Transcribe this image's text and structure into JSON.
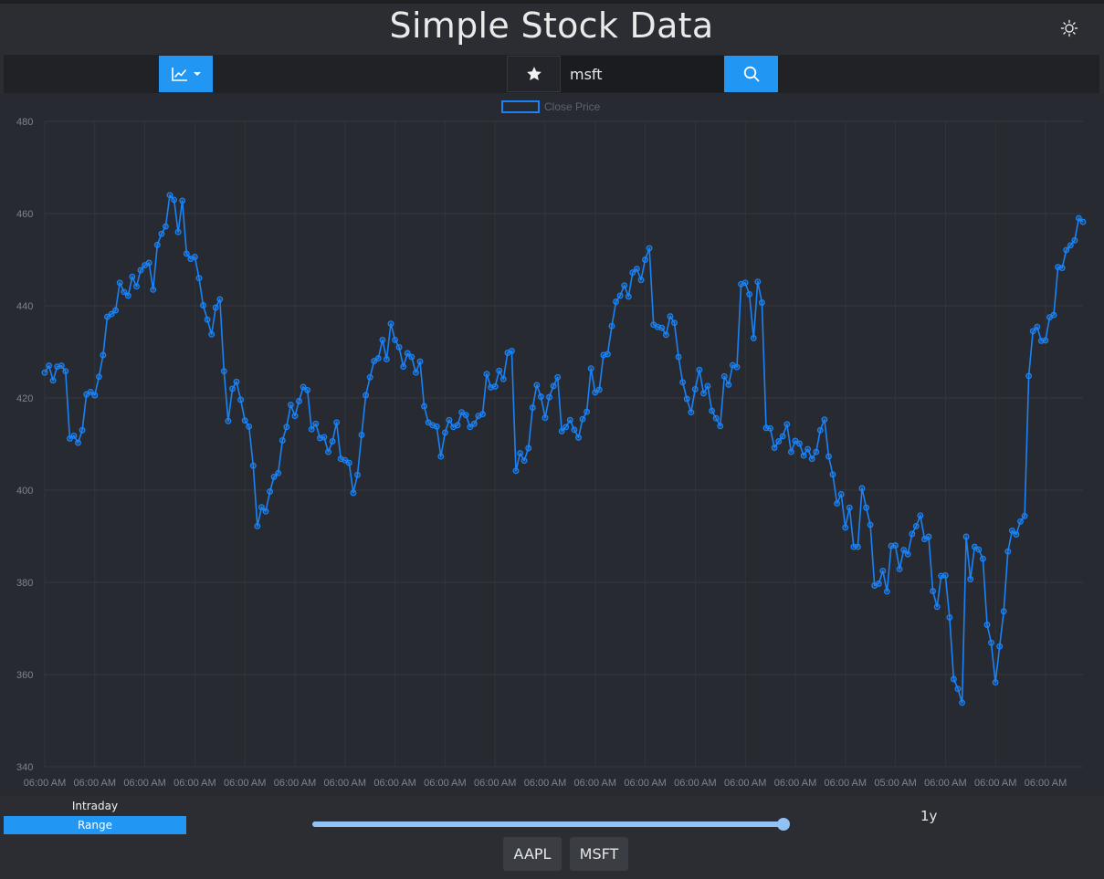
{
  "header": {
    "title": "Simple Stock Data",
    "theme_icon": "sun-icon"
  },
  "toolbar": {
    "chart_type_icon": "line-chart-icon",
    "favorite_icon": "star-icon",
    "search_value": "msft",
    "search_icon": "search-icon"
  },
  "colors": {
    "accent": "#2196f3",
    "line": "#1a82f7",
    "background": "#272a30"
  },
  "chart_data": {
    "type": "line",
    "legend": [
      "Close Price"
    ],
    "legend_position": "top-center",
    "ylim": [
      340,
      480
    ],
    "yticks": [
      340,
      360,
      380,
      400,
      420,
      440,
      460,
      480
    ],
    "xtick_labels": [
      "06:00 AM",
      "06:00 AM",
      "06:00 AM",
      "06:00 AM",
      "06:00 AM",
      "06:00 AM",
      "06:00 AM",
      "06:00 AM",
      "06:00 AM",
      "06:00 AM",
      "06:00 AM",
      "06:00 AM",
      "06:00 AM",
      "06:00 AM",
      "06:00 AM",
      "06:00 AM",
      "06:00 AM",
      "05:00 AM",
      "06:00 AM",
      "06:00 AM",
      "06:00 AM"
    ],
    "grid": true,
    "series": [
      {
        "name": "Close Price",
        "values": [
          425.5,
          427,
          423.8,
          426.8,
          427,
          425.8,
          411.2,
          411.8,
          410.3,
          413,
          420.8,
          421.3,
          420.6,
          424.6,
          429.3,
          437.6,
          438.2,
          439,
          445,
          443,
          442.2,
          446.3,
          444.2,
          447.7,
          448.8,
          449.3,
          443.5,
          453.2,
          455.6,
          457.2,
          464,
          463,
          456,
          462.8,
          451.3,
          450.2,
          450.6,
          446,
          440.1,
          437,
          433.8,
          439.6,
          441.4,
          425.8,
          415,
          422,
          423.5,
          419.6,
          415.1,
          413.8,
          405.3,
          392.2,
          396.3,
          395.4,
          399.7,
          402.9,
          403.7,
          410.8,
          413.7,
          418.5,
          416.1,
          419.3,
          422.4,
          421.7,
          413.2,
          414.4,
          411.3,
          411.5,
          408.3,
          410.6,
          414.7,
          406.8,
          406.5,
          405.9,
          399.4,
          403.3,
          412,
          420.6,
          424.5,
          428,
          428.6,
          432.6,
          428.4,
          436.1,
          432.6,
          431,
          426.8,
          429.7,
          428.9,
          425.5,
          427.9,
          418.2,
          414.7,
          414.1,
          413.8,
          407.3,
          412.5,
          415.2,
          413.7,
          414.1,
          416.9,
          416.3,
          413.7,
          414.4,
          416.1,
          416.5,
          425.2,
          422.3,
          422.5,
          425.9,
          424.1,
          429.8,
          430.2,
          404.2,
          408,
          406.4,
          409.1,
          417.9,
          422.8,
          420.3,
          415.7,
          420.2,
          422.6,
          424.5,
          412.8,
          413.7,
          415.2,
          413.1,
          411.4,
          415.4,
          417,
          426.4,
          421.2,
          421.8,
          429.3,
          429.5,
          435.6,
          440.9,
          442.2,
          444.4,
          442,
          447.2,
          448,
          445.6,
          450,
          452.5,
          435.9,
          435.4,
          435.2,
          433.7,
          437.7,
          436.3,
          428.9,
          423.4,
          419.8,
          416.9,
          421.9,
          426.1,
          421,
          422.6,
          417.2,
          415.6,
          413.9,
          424.7,
          422.9,
          427.1,
          426.7,
          444.7,
          445,
          442.5,
          433,
          445.2,
          440.7,
          413.5,
          413.4,
          409.2,
          410.6,
          411.7,
          414.3,
          408.3,
          410.7,
          410.1,
          407.5,
          408.9,
          406.8,
          408.3,
          413,
          415.3,
          407.3,
          403.4,
          397.1,
          399.1,
          391.9,
          396.2,
          387.7,
          387.7,
          400.4,
          396.2,
          392.5,
          379.3,
          379.7,
          382.5,
          378,
          387.9,
          388,
          382.9,
          387,
          386.1,
          390.5,
          392.2,
          394.5,
          389.4,
          389.9,
          378.1,
          374.7,
          381.4,
          381.5,
          372.4,
          359,
          356.9,
          353.9,
          389.9,
          380.7,
          387.7,
          387.1,
          385.1,
          370.8,
          366.9,
          358.3,
          366.1,
          373.7,
          386.7,
          391.2,
          390.4,
          393.2,
          394.4,
          424.8,
          434.5,
          435.4,
          432.4,
          432.5,
          437.5,
          438,
          448.4,
          448.2,
          452.1,
          453.1,
          454.2,
          459,
          458.2
        ]
      }
    ]
  },
  "controls": {
    "intraday_label": "Intraday",
    "range_label": "Range",
    "range_value": "1y",
    "slider_level": 1.0
  },
  "tickers": [
    {
      "label": "AAPL"
    },
    {
      "label": "MSFT"
    }
  ]
}
